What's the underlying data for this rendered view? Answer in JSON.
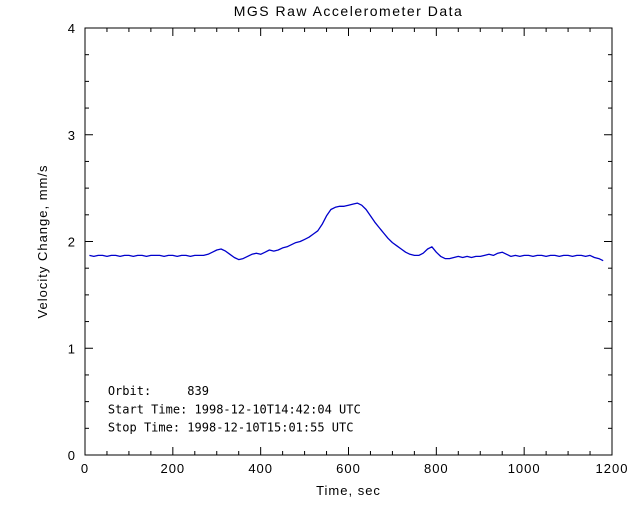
{
  "page": {
    "background": "#ffffff"
  },
  "chart_data": {
    "type": "line",
    "title": "MGS Raw Accelerometer Data",
    "xlabel": "Time, sec",
    "ylabel": "Velocity Change, mm/s",
    "xlim": [
      0,
      1200
    ],
    "ylim": [
      0,
      4
    ],
    "x_ticks": [
      0,
      200,
      400,
      600,
      800,
      1000,
      1200
    ],
    "y_ticks": [
      0,
      1,
      2,
      3,
      4
    ],
    "x_minor_step": 50,
    "y_minor_step": 0.25,
    "grid": false,
    "legend": "none",
    "axis_color": "#000000",
    "line_color": "#0000cc",
    "annotations": [
      {
        "text": "Orbit:     839",
        "x": 52,
        "y": 0.56
      },
      {
        "text": "Start Time: 1998-12-10T14:42:04 UTC",
        "x": 52,
        "y": 0.39
      },
      {
        "text": "Stop Time: 1998-12-10T15:01:55 UTC",
        "x": 52,
        "y": 0.22
      }
    ],
    "series": [
      {
        "name": "velocity_change",
        "x": [
          10,
          20,
          30,
          40,
          50,
          60,
          70,
          80,
          90,
          100,
          110,
          120,
          130,
          140,
          150,
          160,
          170,
          180,
          190,
          200,
          210,
          220,
          230,
          240,
          250,
          260,
          270,
          280,
          290,
          300,
          310,
          320,
          330,
          340,
          350,
          360,
          370,
          380,
          390,
          400,
          410,
          420,
          430,
          440,
          450,
          460,
          470,
          480,
          490,
          500,
          510,
          520,
          530,
          540,
          550,
          560,
          570,
          580,
          590,
          600,
          610,
          620,
          630,
          640,
          650,
          660,
          670,
          680,
          690,
          700,
          710,
          720,
          730,
          740,
          750,
          760,
          770,
          780,
          790,
          800,
          810,
          820,
          830,
          840,
          850,
          860,
          870,
          880,
          890,
          900,
          910,
          920,
          930,
          940,
          950,
          960,
          970,
          980,
          990,
          1000,
          1010,
          1020,
          1030,
          1040,
          1050,
          1060,
          1070,
          1080,
          1090,
          1100,
          1110,
          1120,
          1130,
          1140,
          1150,
          1160,
          1170,
          1180
        ],
        "y": [
          1.87,
          1.86,
          1.87,
          1.87,
          1.86,
          1.87,
          1.87,
          1.86,
          1.87,
          1.87,
          1.86,
          1.87,
          1.87,
          1.86,
          1.87,
          1.87,
          1.87,
          1.86,
          1.87,
          1.87,
          1.86,
          1.87,
          1.87,
          1.86,
          1.87,
          1.87,
          1.87,
          1.88,
          1.9,
          1.92,
          1.93,
          1.91,
          1.88,
          1.85,
          1.83,
          1.84,
          1.86,
          1.88,
          1.89,
          1.88,
          1.9,
          1.92,
          1.91,
          1.92,
          1.94,
          1.95,
          1.97,
          1.99,
          2.0,
          2.02,
          2.04,
          2.07,
          2.1,
          2.16,
          2.24,
          2.3,
          2.32,
          2.33,
          2.33,
          2.34,
          2.35,
          2.36,
          2.34,
          2.3,
          2.24,
          2.18,
          2.13,
          2.08,
          2.03,
          1.99,
          1.96,
          1.93,
          1.9,
          1.88,
          1.87,
          1.87,
          1.89,
          1.93,
          1.95,
          1.9,
          1.86,
          1.84,
          1.84,
          1.85,
          1.86,
          1.85,
          1.86,
          1.85,
          1.86,
          1.86,
          1.87,
          1.88,
          1.87,
          1.89,
          1.9,
          1.88,
          1.86,
          1.87,
          1.86,
          1.87,
          1.87,
          1.86,
          1.87,
          1.87,
          1.86,
          1.87,
          1.87,
          1.86,
          1.87,
          1.87,
          1.86,
          1.87,
          1.87,
          1.86,
          1.87,
          1.85,
          1.84,
          1.82
        ]
      }
    ]
  }
}
